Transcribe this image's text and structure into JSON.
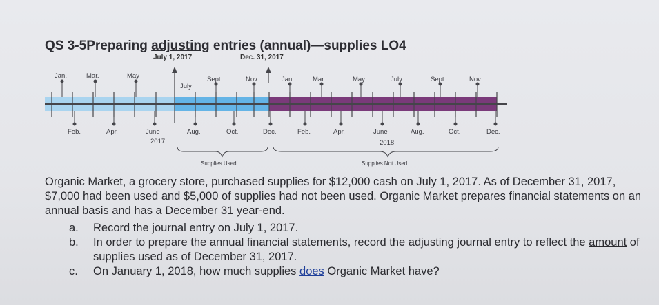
{
  "title_prefix": "QS 3-5Preparing ",
  "title_underlined": "adjusting",
  "title_suffix": " entries (annual)—supplies LO4",
  "date_july": "July 1, 2017",
  "date_dec": "Dec. 31, 2017",
  "timeline": {
    "top_months": [
      "Jan.",
      "Mar.",
      "May",
      "July",
      "Sept.",
      "Nov.",
      "Jan.",
      "Mar.",
      "May",
      "July",
      "Sept.",
      "Nov."
    ],
    "bottom_months": [
      "Feb.",
      "Apr.",
      "June",
      "Aug.",
      "Oct.",
      "Dec.",
      "Feb.",
      "Apr.",
      "June",
      "Aug.",
      "Oct.",
      "Dec."
    ],
    "year_2017": "2017",
    "year_2018": "2018",
    "supplies_used": "Supplies Used",
    "supplies_not_used": "Supplies Not Used",
    "colors": {
      "blue": "#64b4e6",
      "light_blue": "#a9d4ef",
      "purple": "#7a3a7a",
      "axis": "#45454a"
    }
  },
  "paragraph": {
    "part1": "Organic Market, a grocery store, purchased supplies for $12,000 cash on July 1, 2017. As of December 31, 2017, $7,000 had been used and $5,000 of supplies had not been used. Organic Market prepares financial statements on an annual basis and has a December 31 year-end."
  },
  "items": [
    {
      "letter": "a.",
      "text": "Record the journal entry on July 1, 2017."
    },
    {
      "letter": "b.",
      "text_before": "In order to prepare the annual financial statements, record the adjusting journal entry to reflect the ",
      "text_underlined": "amount",
      "text_after": " of supplies used as of December 31, 2017."
    },
    {
      "letter": "c.",
      "text_before": "On January 1, 2018, how much supplies ",
      "text_underlined": "does",
      "text_after": " Organic Market have?"
    }
  ]
}
